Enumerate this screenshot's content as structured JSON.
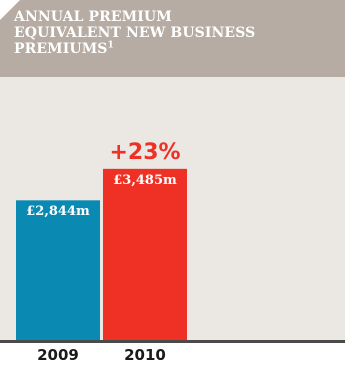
{
  "title_lines": [
    "ANNUAL PREMIUM",
    "EQUIVALENT NEW BUSINESS",
    "PREMIUMS"
  ],
  "title_footnote": "1",
  "colors": {
    "header": "#b6aca3",
    "plot_bg": "#ebe7e3",
    "bar_2009": "#0a8ab3",
    "bar_2010": "#ee3124",
    "change": "#ee3124"
  },
  "change_label": "+23%",
  "chart_data": {
    "type": "bar",
    "categories": [
      "2009",
      "2010"
    ],
    "values": [
      2844,
      3485
    ],
    "data_labels": [
      "£2,844m",
      "£3,485m"
    ],
    "unit": "£m",
    "title": "ANNUAL PREMIUM EQUIVALENT NEW BUSINESS PREMIUMS",
    "xlabel": "",
    "ylabel": "",
    "ylim": [
      0,
      5355
    ],
    "grid": false
  }
}
